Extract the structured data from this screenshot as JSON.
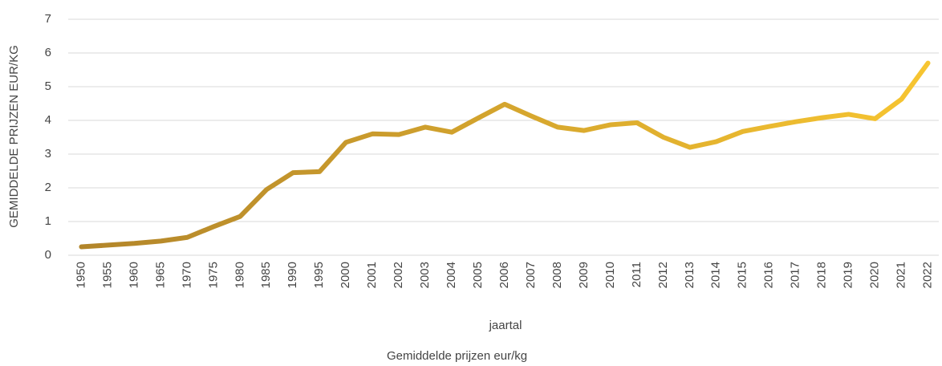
{
  "chart_data": {
    "type": "line",
    "y_label": "GEMIDDELDE PRIJZEN EUR/KG",
    "x_label": "jaartal",
    "categories": [
      "1950",
      "1955",
      "1960",
      "1965",
      "1970",
      "1975",
      "1980",
      "1985",
      "1990",
      "1995",
      "2000",
      "2001",
      "2002",
      "2003",
      "2004",
      "2005",
      "2006",
      "2007",
      "2008",
      "2009",
      "2010",
      "2011",
      "2012",
      "2013",
      "2014",
      "2015",
      "2016",
      "2017",
      "2018",
      "2019",
      "2020",
      "2021",
      "2022"
    ],
    "series": [
      {
        "name": "Gemiddelde prijzen eur/kg",
        "color": [
          "#b1842a",
          "#f8c631"
        ],
        "values": [
          0.25,
          0.3,
          0.35,
          0.42,
          0.53,
          0.85,
          1.15,
          1.95,
          2.45,
          2.48,
          3.35,
          3.6,
          3.58,
          3.8,
          3.65,
          4.07,
          4.48,
          4.13,
          3.8,
          3.7,
          3.87,
          3.93,
          3.5,
          3.2,
          3.37,
          3.67,
          3.82,
          3.96,
          4.08,
          4.18,
          4.05,
          4.63,
          5.7
        ]
      }
    ],
    "ylim": [
      0,
      7
    ],
    "yticks": [
      0,
      1,
      2,
      3,
      4,
      5,
      6,
      7
    ],
    "grid": true,
    "legend": "bottom"
  }
}
